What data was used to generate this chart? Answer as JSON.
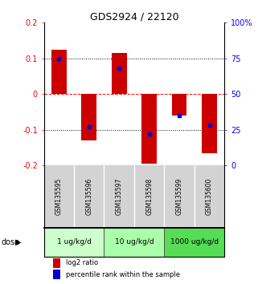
{
  "title": "GDS2924 / 22120",
  "samples": [
    "GSM135595",
    "GSM135596",
    "GSM135597",
    "GSM135598",
    "GSM135599",
    "GSM135600"
  ],
  "log2_ratios": [
    0.125,
    -0.13,
    0.115,
    -0.195,
    -0.06,
    -0.165
  ],
  "percentile_ranks": [
    75,
    27,
    68,
    22,
    35,
    28
  ],
  "dose_groups": [
    {
      "label": "1 ug/kg/d",
      "samples": [
        0,
        1
      ],
      "color": "#ccffcc"
    },
    {
      "label": "10 ug/kg/d",
      "samples": [
        2,
        3
      ],
      "color": "#aaffaa"
    },
    {
      "label": "1000 ug/kg/d",
      "samples": [
        4,
        5
      ],
      "color": "#55dd55"
    }
  ],
  "bar_color": "#cc0000",
  "dot_color": "#0000cc",
  "ylim_left": [
    -0.2,
    0.2
  ],
  "ylim_right": [
    0,
    100
  ],
  "yticks_left": [
    -0.2,
    -0.1,
    0,
    0.1,
    0.2
  ],
  "yticks_right": [
    0,
    25,
    50,
    75,
    100
  ],
  "legend_red": "log2 ratio",
  "legend_blue": "percentile rank within the sample",
  "dose_label": "dose"
}
